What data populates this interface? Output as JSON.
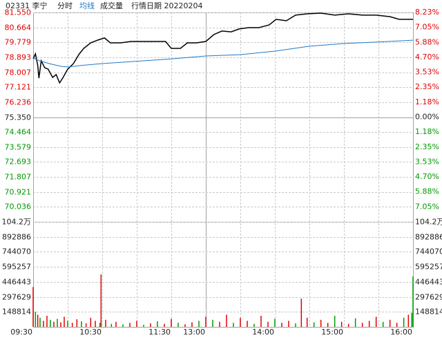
{
  "chart_data": {
    "type": "line",
    "title": "02331 李宁",
    "period": "分时",
    "date_label": "行情日期 20220204",
    "prev_close": 75.35,
    "up_color": "#e00000",
    "down_color": "#009900",
    "grid": true,
    "xlim": [
      0,
      330
    ],
    "xticks": [
      {
        "value": 0,
        "label": "09:30"
      },
      {
        "value": 60,
        "label": "10:30"
      },
      {
        "value": 120,
        "label": "11:30"
      },
      {
        "value": 150,
        "label": "13:00"
      },
      {
        "value": 210,
        "label": "14:00"
      },
      {
        "value": 270,
        "label": "15:00"
      },
      {
        "value": 330,
        "label": "16:00"
      }
    ],
    "xgrid": [
      30,
      60,
      90,
      120,
      150,
      180,
      210,
      240,
      270,
      300
    ],
    "ylim": [
      69.15,
      81.55
    ],
    "yticks": [
      {
        "value": 81.55,
        "label": "81.550"
      },
      {
        "value": 80.664,
        "label": "80.664"
      },
      {
        "value": 79.779,
        "label": "79.779"
      },
      {
        "value": 78.893,
        "label": "78.893"
      },
      {
        "value": 78.007,
        "label": "78.007"
      },
      {
        "value": 77.121,
        "label": "77.121"
      },
      {
        "value": 76.236,
        "label": "76.236"
      },
      {
        "value": 75.35,
        "label": "75.350"
      },
      {
        "value": 74.464,
        "label": "74.464"
      },
      {
        "value": 73.579,
        "label": "73.579"
      },
      {
        "value": 72.693,
        "label": "72.693"
      },
      {
        "value": 71.807,
        "label": "71.807"
      },
      {
        "value": 70.921,
        "label": "70.921"
      },
      {
        "value": 70.036,
        "label": "70.036"
      }
    ],
    "y2lim": [
      -8.23,
      8.23
    ],
    "y2ticks": [
      {
        "value": 8.23,
        "label": "8.23%"
      },
      {
        "value": 7.05,
        "label": "7.05%"
      },
      {
        "value": 5.88,
        "label": "5.88%"
      },
      {
        "value": 4.7,
        "label": "4.70%"
      },
      {
        "value": 3.53,
        "label": "3.53%"
      },
      {
        "value": 2.35,
        "label": "2.35%"
      },
      {
        "value": 1.18,
        "label": "1.18%"
      },
      {
        "value": 0,
        "label": "0.00%"
      },
      {
        "value": -1.18,
        "label": "1.18%"
      },
      {
        "value": -2.35,
        "label": "2.35%"
      },
      {
        "value": -3.53,
        "label": "3.53%"
      },
      {
        "value": -4.7,
        "label": "4.70%"
      },
      {
        "value": -5.88,
        "label": "5.88%"
      },
      {
        "value": -7.05,
        "label": "7.05%"
      }
    ],
    "series": [
      {
        "name": "分时",
        "color": "#000000",
        "x": [
          0,
          2,
          4,
          5,
          7,
          10,
          13,
          17,
          20,
          23,
          26,
          30,
          35,
          40,
          44,
          50,
          56,
          62,
          67,
          76,
          85,
          94,
          104,
          115,
          120,
          128,
          134,
          142,
          150,
          157,
          164,
          172,
          179,
          187,
          196,
          205,
          211,
          220,
          228,
          238,
          250,
          262,
          274,
          286,
          298,
          310,
          318,
          330
        ],
        "values": [
          78.81,
          79.1,
          78.4,
          77.66,
          78.69,
          78.28,
          78.19,
          77.7,
          77.87,
          77.38,
          77.7,
          78.19,
          78.52,
          79.09,
          79.42,
          79.75,
          79.91,
          80.04,
          79.75,
          79.75,
          79.83,
          79.83,
          79.83,
          79.83,
          79.42,
          79.42,
          79.75,
          79.75,
          79.83,
          80.24,
          80.45,
          80.4,
          80.57,
          80.65,
          80.65,
          80.81,
          81.14,
          81.06,
          81.39,
          81.47,
          81.51,
          81.39,
          81.47,
          81.39,
          81.39,
          81.3,
          81.14,
          81.14
        ]
      },
      {
        "name": "均线",
        "color": "#1f78c8",
        "x": [
          0,
          5,
          15,
          25,
          31,
          40,
          60,
          90,
          120,
          150,
          180,
          210,
          240,
          270,
          300,
          330
        ],
        "values": [
          78.85,
          78.7,
          78.5,
          78.35,
          78.32,
          78.4,
          78.52,
          78.66,
          78.8,
          78.97,
          79.05,
          79.26,
          79.55,
          79.71,
          79.8,
          79.91
        ]
      }
    ],
    "volume": {
      "name": "成交量",
      "ylim": [
        0,
        1041700
      ],
      "yticks": [
        {
          "value": 1041700,
          "label": "104.2万"
        },
        892886,
        744070,
        595257,
        446443,
        297629,
        148814
      ],
      "x": [
        0,
        2,
        4,
        6,
        9,
        12,
        15,
        18,
        21,
        24,
        27,
        30,
        34,
        38,
        42,
        46,
        50,
        54,
        58,
        59,
        63,
        68,
        72,
        78,
        84,
        90,
        96,
        102,
        108,
        114,
        120,
        126,
        132,
        138,
        144,
        150,
        156,
        162,
        168,
        174,
        180,
        186,
        192,
        198,
        204,
        210,
        216,
        222,
        228,
        233,
        238,
        244,
        250,
        256,
        262,
        268,
        274,
        280,
        286,
        292,
        298,
        304,
        310,
        316,
        322,
        326,
        329,
        330
      ],
      "values": [
        395000,
        150000,
        120000,
        90000,
        60000,
        110000,
        70000,
        50000,
        80000,
        45000,
        100000,
        60000,
        40000,
        75000,
        55000,
        35000,
        90000,
        60000,
        40000,
        520000,
        70000,
        30000,
        50000,
        25000,
        40000,
        60000,
        20000,
        35000,
        55000,
        30000,
        80000,
        40000,
        25000,
        45000,
        60000,
        100000,
        70000,
        50000,
        120000,
        40000,
        90000,
        60000,
        30000,
        110000,
        50000,
        80000,
        40000,
        60000,
        35000,
        280000,
        90000,
        45000,
        70000,
        40000,
        110000,
        50000,
        30000,
        85000,
        40000,
        60000,
        100000,
        50000,
        70000,
        40000,
        90000,
        120000,
        140000,
        500000
      ],
      "colors": [
        "#e00000",
        "#009900",
        "#e00000",
        "#009900",
        "#e00000",
        "#e00000",
        "#009900",
        "#e00000",
        "#009900",
        "#e00000",
        "#e00000",
        "#009900",
        "#e00000",
        "#e00000",
        "#009900",
        "#e00000",
        "#e00000",
        "#e00000",
        "#009900",
        "#e00000",
        "#e00000",
        "#009900",
        "#e00000",
        "#009900",
        "#e00000",
        "#e00000",
        "#009900",
        "#e00000",
        "#009900",
        "#e00000",
        "#e00000",
        "#009900",
        "#e00000",
        "#e00000",
        "#009900",
        "#e00000",
        "#009900",
        "#e00000",
        "#e00000",
        "#009900",
        "#e00000",
        "#e00000",
        "#009900",
        "#e00000",
        "#e00000",
        "#009900",
        "#e00000",
        "#e00000",
        "#009900",
        "#e00000",
        "#e00000",
        "#009900",
        "#e00000",
        "#e00000",
        "#009900",
        "#e00000",
        "#e00000",
        "#009900",
        "#e00000",
        "#e00000",
        "#e00000",
        "#009900",
        "#e00000",
        "#e00000",
        "#009900",
        "#e00000",
        "#009900",
        "#009900"
      ]
    }
  }
}
